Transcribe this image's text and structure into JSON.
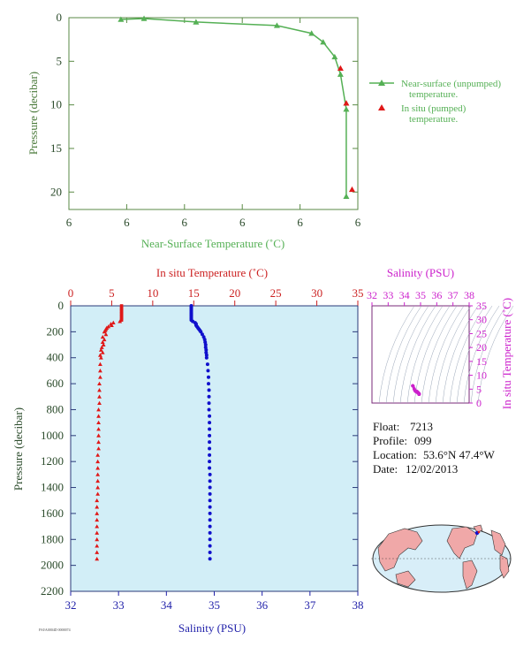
{
  "colors": {
    "green_axis": "#5a8a44",
    "green_line": "#55b055",
    "red": "#e01818",
    "blue": "#1010cc",
    "magenta": "#cc22cc",
    "panel_bg": "#d2eef7",
    "dark": "#333333"
  },
  "top": {
    "ylabel": "Pressure (decibar)",
    "xlabel": "Near-Surface Temperature (˚C)",
    "yticks": [
      "0",
      "5",
      "10",
      "15",
      "20"
    ],
    "xticks": [
      "6",
      "6",
      "6",
      "6",
      "6",
      "6"
    ],
    "legend": [
      {
        "line1": "Near-surface (unpumped)",
        "line2": "temperature."
      },
      {
        "line1": "In situ (pumped)",
        "line2": "temperature."
      }
    ]
  },
  "bottom": {
    "title_top": "In situ Temperature (˚C)",
    "xlabel": "Salinity (PSU)",
    "ylabel": "Pressure (decibar)",
    "temp_ticks": [
      "0",
      "5",
      "10",
      "15",
      "20",
      "25",
      "30",
      "35"
    ],
    "sal_ticks": [
      "32",
      "33",
      "34",
      "35",
      "36",
      "37",
      "38"
    ],
    "p_ticks": [
      "0",
      "200",
      "400",
      "600",
      "800",
      "1000",
      "1200",
      "1400",
      "1600",
      "1800",
      "2000",
      "2200"
    ],
    "footnote": "FSI/A0004D 0000074"
  },
  "ts": {
    "title": "Salinity (PSU)",
    "ylabel": "In situ Temperature (˚C)",
    "xticks": [
      "32",
      "33",
      "34",
      "35",
      "36",
      "37",
      "38"
    ],
    "yticks": [
      "0",
      "5",
      "10",
      "15",
      "20",
      "25",
      "30",
      "35"
    ]
  },
  "info": {
    "float_label": "Float:",
    "float": "7213",
    "profile_label": "Profile:",
    "profile": "099",
    "location_label": "Location:",
    "location": "53.6°N  47.4°W",
    "date_label": "Date:",
    "date": "12/02/2013"
  },
  "chart_data": [
    {
      "type": "line",
      "series": [
        {
          "name": "Near-surface (unpumped) temperature.",
          "x_norm_note": "x tick labels all print 6",
          "points": [
            [
              0.18,
              0.2
            ],
            [
              0.26,
              0.1
            ],
            [
              0.44,
              0.5
            ],
            [
              0.72,
              0.9
            ],
            [
              0.84,
              1.8
            ],
            [
              0.88,
              2.8
            ],
            [
              0.92,
              4.5
            ],
            [
              0.94,
              6.5
            ],
            [
              0.96,
              10.5
            ],
            [
              0.96,
              20.5
            ]
          ]
        },
        {
          "name": "In situ (pumped) temperature.",
          "points": [
            [
              0.94,
              5.8
            ],
            [
              0.96,
              9.8
            ],
            [
              0.98,
              19.7
            ]
          ]
        }
      ],
      "ylim": [
        0,
        22
      ]
    },
    {
      "type": "scatter",
      "title": "In situ Temperature (˚C)",
      "xlim_temp": [
        0,
        35
      ],
      "xlim_sal": [
        32,
        38
      ],
      "ylim": [
        2200,
        0
      ],
      "series": [
        {
          "name": "In situ Temperature (˚C)",
          "pressure": [
            0,
            10,
            20,
            30,
            40,
            50,
            60,
            70,
            80,
            90,
            100,
            110,
            120,
            130,
            140,
            150,
            160,
            170,
            180,
            190,
            200,
            220,
            240,
            260,
            280,
            300,
            320,
            340,
            360,
            380,
            400,
            450,
            500,
            550,
            600,
            650,
            700,
            750,
            800,
            850,
            900,
            950,
            1000,
            1050,
            1100,
            1150,
            1200,
            1250,
            1300,
            1350,
            1400,
            1450,
            1500,
            1550,
            1600,
            1650,
            1700,
            1750,
            1800,
            1850,
            1900,
            1950
          ],
          "values": [
            6.2,
            6.2,
            6.2,
            6.2,
            6.2,
            6.2,
            6.2,
            6.2,
            6.2,
            6.2,
            6.2,
            6.2,
            6.0,
            5.2,
            4.9,
            5.0,
            4.6,
            4.4,
            4.3,
            4.2,
            4.1,
            4.3,
            3.9,
            4.1,
            3.9,
            4.0,
            3.8,
            3.7,
            3.9,
            3.6,
            3.7,
            3.6,
            3.6,
            3.6,
            3.5,
            3.5,
            3.5,
            3.5,
            3.4,
            3.4,
            3.4,
            3.4,
            3.4,
            3.4,
            3.4,
            3.3,
            3.3,
            3.3,
            3.3,
            3.3,
            3.3,
            3.3,
            3.2,
            3.2,
            3.2,
            3.2,
            3.2,
            3.2,
            3.2,
            3.2,
            3.2,
            3.2
          ]
        },
        {
          "name": "Salinity (PSU)",
          "pressure": [
            0,
            10,
            20,
            30,
            40,
            50,
            60,
            70,
            80,
            90,
            100,
            110,
            120,
            130,
            140,
            150,
            160,
            170,
            180,
            190,
            200,
            220,
            240,
            260,
            280,
            300,
            320,
            340,
            360,
            380,
            400,
            450,
            500,
            550,
            600,
            650,
            700,
            750,
            800,
            850,
            900,
            950,
            1000,
            1050,
            1100,
            1150,
            1200,
            1250,
            1300,
            1350,
            1400,
            1450,
            1500,
            1550,
            1600,
            1650,
            1700,
            1750,
            1800,
            1850,
            1900,
            1950
          ],
          "values": [
            34.52,
            34.52,
            34.52,
            34.52,
            34.52,
            34.52,
            34.52,
            34.52,
            34.52,
            34.52,
            34.52,
            34.52,
            34.55,
            34.6,
            34.62,
            34.62,
            34.64,
            34.66,
            34.68,
            34.7,
            34.72,
            34.75,
            34.78,
            34.8,
            34.81,
            34.82,
            34.82,
            34.83,
            34.83,
            34.84,
            34.84,
            34.86,
            34.87,
            34.88,
            34.88,
            34.89,
            34.89,
            34.89,
            34.89,
            34.9,
            34.9,
            34.9,
            34.9,
            34.9,
            34.9,
            34.9,
            34.9,
            34.9,
            34.91,
            34.91,
            34.91,
            34.91,
            34.91,
            34.91,
            34.91,
            34.91,
            34.91,
            34.91,
            34.91,
            34.91,
            34.91,
            34.91
          ]
        }
      ]
    }
  ]
}
